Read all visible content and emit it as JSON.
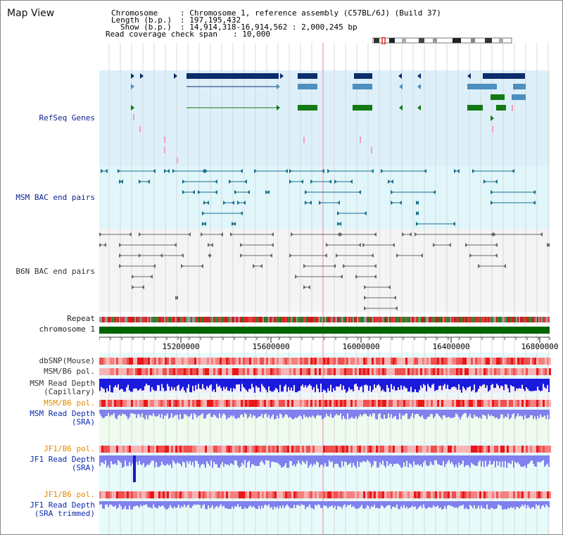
{
  "map_title": "Map View",
  "header": {
    "chromosome_label": "Chromosome",
    "chromosome_value": ": Chromosome 1, reference assembly (C57BL/6J) (Build 37)",
    "length_label": "Length (b.p.)",
    "length_value": ": 197,195,432",
    "show_label": "Show (b.p.)",
    "show_value": ": 14,914,318-16,914,562 : 2,000,245 bp",
    "coverage_label": "Read coverage check span",
    "coverage_value": ": 10,000"
  },
  "tracks": {
    "refseq": "RefSeq Genes",
    "msm_bac": "MSM BAC end pairs",
    "b6n_bac": "B6N BAC end pairs",
    "repeat": "Repeat",
    "chromosome": "chromosome 1",
    "dbsnp": "dbSNP(Mouse)",
    "msm_b6_pol_1": "MSM/B6 pol.",
    "msm_depth_cap_1": "MSM Read Depth",
    "msm_depth_cap_2": "(Capillary)",
    "msm_b6_pol_2": "MSM/B6 pol.",
    "msm_depth_sra_1": "MSM Read Depth",
    "msm_depth_sra_2": "(SRA)",
    "jf1_pol_1": "JF1/B6 pol.",
    "jf1_depth_sra_1": "JF1 Read Depth",
    "jf1_depth_sra_2": "(SRA)",
    "jf1_pol_2": "JF1/B6 pol.",
    "jf1_depth_trim_1": "JF1 Read Depth",
    "jf1_depth_trim_2": "(SRA trimmed)"
  },
  "axis": {
    "ticks": [
      "15200000",
      "15600000",
      "16000000",
      "16400000",
      "16800000"
    ]
  },
  "colors": {
    "refseq_bg": "#ddf0fa",
    "msm_bg": "#e0f6fa",
    "b6n_bg": "#f4f4f4",
    "chromosome": "#006400",
    "depth_capillary": "#1a1adc",
    "depth_sra": "#8080ee",
    "highlight": "#f2a8c4"
  }
}
